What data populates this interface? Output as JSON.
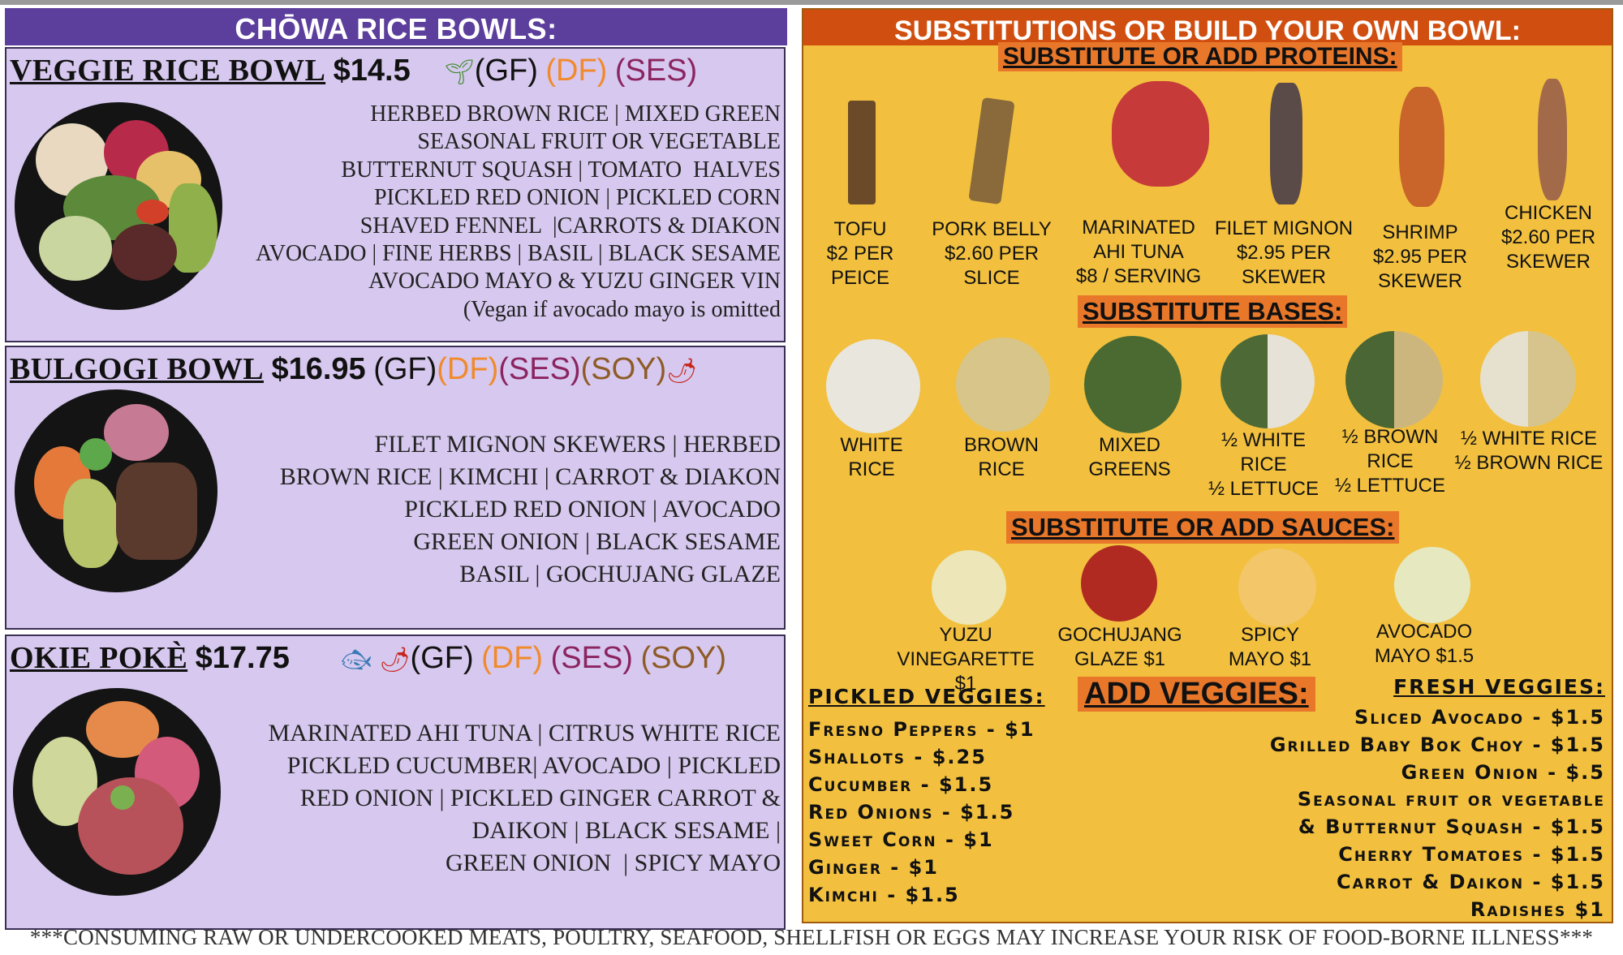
{
  "menu": {
    "left_header": "CHŌWA RICE BOWLS:",
    "bowls": [
      {
        "name": "VEGGIE RICE BOWL",
        "price": "$14.5",
        "icons": [
          "leaf-icon"
        ],
        "tags": [
          "(GF)",
          "(DF)",
          "(SES)"
        ],
        "ingredients": "HERBED BROWN RICE | MIXED GREEN\nSEASONAL FRUIT OR VEGETABLE\nBUTTERNUT SQUASH | TOMATO  HALVES\nPICKLED RED ONION | PICKLED CORN\nSHAVED FENNEL  |CARROTS & DIAKON\nAVOCADO | FINE HERBS | BASIL | BLACK SESAME\nAVOCADO MAYO & YUZU GINGER VIN\n(Vegan if avocado mayo is omitted"
      },
      {
        "name": "BULGOGI BOWL",
        "price": "$16.95",
        "icons": [
          "chili-pepper-icon"
        ],
        "tags": [
          "(GF)",
          "(DF)",
          "(SES)",
          "(SOY)"
        ],
        "ingredients": "FILET MIGNON SKEWERS | HERBED\nBROWN RICE | KIMCHI | CARROT & DIAKON\nPICKLED RED ONION | AVOCADO\nGREEN ONION | BLACK SESAME\nBASIL | GOCHUJANG GLAZE"
      },
      {
        "name": "OKIE POKÈ",
        "price": "$17.75",
        "icons": [
          "fish-icon",
          "chili-pepper-icon"
        ],
        "tags": [
          "(GF)",
          "(DF)",
          "(SES)",
          "(SOY)"
        ],
        "ingredients": "MARINATED AHI TUNA | CITRUS WHITE RICE\nPICKLED CUCUMBER| AVOCADO | PICKLED\nRED ONION | PICKLED GINGER CARROT &\nDAIKON | BLACK SESAME |\nGREEN ONION  | SPICY MAYO"
      }
    ],
    "right_header": "SUBSTITUTIONS OR BUILD YOUR OWN BOWL:",
    "proteins_title": "SUBSTITUTE OR ADD PROTEINS:",
    "proteins": [
      {
        "l1": "TOFU",
        "l2": "$2 PER",
        "l3": "PEICE"
      },
      {
        "l1": "PORK BELLY",
        "l2": "$2.60 PER",
        "l3": "SLICE"
      },
      {
        "l1": "MARINATED",
        "l2": "AHI TUNA",
        "l3": "$8 / SERVING"
      },
      {
        "l1": "FILET MIGNON",
        "l2": "$2.95 PER",
        "l3": "SKEWER"
      },
      {
        "l1": "SHRIMP",
        "l2": "$2.95 PER",
        "l3": "SKEWER"
      },
      {
        "l1": "CHICKEN",
        "l2": "$2.60 PER",
        "l3": "SKEWER"
      }
    ],
    "bases_title": "SUBSTITUTE BASES:",
    "bases": [
      {
        "l1": "WHITE",
        "l2": "RICE",
        "l3": ""
      },
      {
        "l1": "BROWN",
        "l2": "RICE",
        "l3": ""
      },
      {
        "l1": "MIXED",
        "l2": "GREENS",
        "l3": ""
      },
      {
        "l1": "½ WHITE",
        "l2": "RICE",
        "l3": "½ LETTUCE"
      },
      {
        "l1": "½ BROWN",
        "l2": "RICE",
        "l3": "½ LETTUCE"
      },
      {
        "l1": "½ WHITE RICE",
        "l2": "½ BROWN RICE",
        "l3": ""
      }
    ],
    "sauces_title": "SUBSTITUTE OR ADD SAUCES:",
    "sauces": [
      {
        "l1": "YUZU",
        "l2": "VINEGARETTE $1"
      },
      {
        "l1": "GOCHUJANG",
        "l2": "GLAZE $1"
      },
      {
        "l1": "SPICY",
        "l2": "MAYO $1"
      },
      {
        "l1": "AVOCADO",
        "l2": "MAYO $1.5"
      }
    ],
    "pickled_title": "PICKLED VEGGIES:",
    "pickled": [
      "Fresno Peppers - $1",
      "Shallots - $.25",
      "Cucumber - $1.5",
      "Red Onions - $1.5",
      "Sweet Corn - $1",
      "Ginger - $1",
      "Kimchi - $1.5"
    ],
    "add_veggies": "ADD VEGGIES:",
    "fresh_title": "FRESH VEGGIES:",
    "fresh": [
      "Sliced Avocado - $1.5",
      "Grilled Baby Bok Choy - $1.5",
      "Green Onion - $.5",
      "Seasonal fruit or vegetable",
      "& Butternut Squash - $1.5",
      "Cherry Tomatoes - $1.5",
      "Carrot & Daikon - $1.5",
      "Radishes $1"
    ],
    "footer": "***CONSUMING RAW OR UNDERCOOKED MEATS, POULTRY, SEAFOOD, SHELLFISH OR EGGS MAY INCREASE YOUR RISK OF FOOD-BORNE ILLNESS***"
  },
  "colors": {
    "left_header_bg": "#5c3e9c",
    "bowl_bg": "#d6c8ee",
    "right_bg": "#f2c03e",
    "right_header_bg": "#d04f10",
    "subheader_highlight": "#e8772a",
    "df_tag": "#f08a2c",
    "ses_tag": "#8b2460",
    "soy_tag": "#8e5b26"
  }
}
